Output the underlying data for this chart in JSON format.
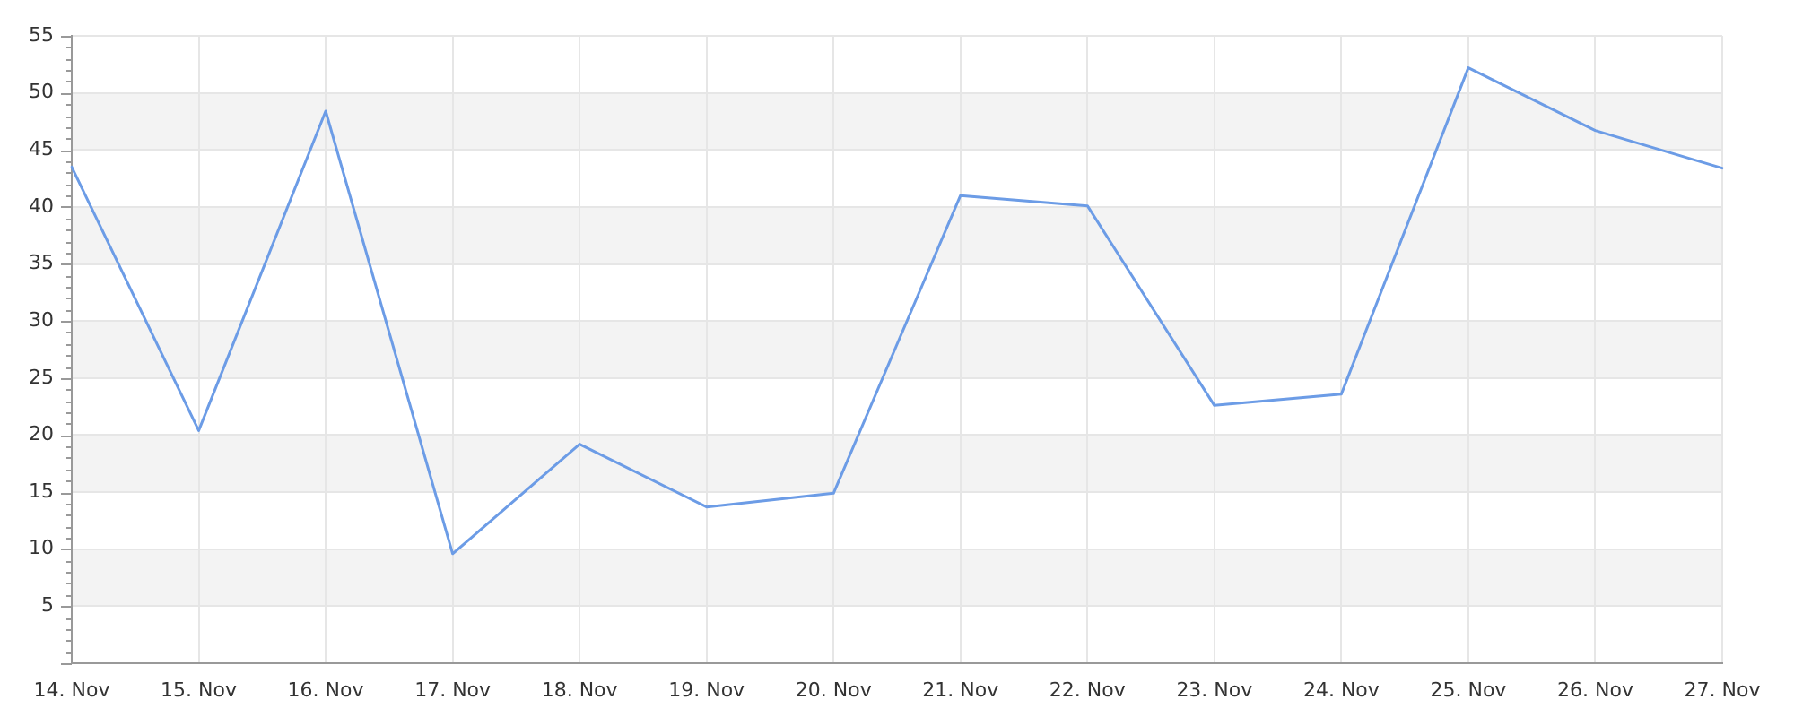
{
  "chart_data": {
    "type": "line",
    "categories": [
      "14. Nov",
      "15. Nov",
      "16. Nov",
      "17. Nov",
      "18. Nov",
      "19. Nov",
      "20. Nov",
      "21. Nov",
      "22. Nov",
      "23. Nov",
      "24. Nov",
      "25. Nov",
      "26. Nov",
      "27. Nov"
    ],
    "values": [
      43.5,
      20.4,
      48.4,
      9.6,
      19.2,
      13.7,
      14.9,
      41.0,
      40.1,
      22.6,
      23.6,
      52.2,
      46.7,
      43.4
    ],
    "color": "#6c9ce6",
    "ylim": [
      0,
      55
    ],
    "yticks": [
      {
        "value": 0,
        "label": null
      },
      {
        "value": 1,
        "label": null
      },
      {
        "value": 2,
        "label": null
      },
      {
        "value": 3,
        "label": null
      },
      {
        "value": 4,
        "label": null
      },
      5,
      {
        "value": 6,
        "label": null
      },
      {
        "value": 7,
        "label": null
      },
      {
        "value": 8,
        "label": null
      },
      {
        "value": 9,
        "label": null
      },
      10,
      {
        "value": 11,
        "label": null
      },
      {
        "value": 12,
        "label": null
      },
      {
        "value": 13,
        "label": null
      },
      {
        "value": 14,
        "label": null
      },
      15,
      {
        "value": 16,
        "label": null
      },
      {
        "value": 17,
        "label": null
      },
      {
        "value": 18,
        "label": null
      },
      {
        "value": 19,
        "label": null
      },
      20,
      {
        "value": 21,
        "label": null
      },
      {
        "value": 22,
        "label": null
      },
      {
        "value": 23,
        "label": null
      },
      {
        "value": 24,
        "label": null
      },
      25,
      {
        "value": 26,
        "label": null
      },
      {
        "value": 27,
        "label": null
      },
      {
        "value": 28,
        "label": null
      },
      {
        "value": 29,
        "label": null
      },
      30,
      {
        "value": 31,
        "label": null
      },
      {
        "value": 32,
        "label": null
      },
      {
        "value": 33,
        "label": null
      },
      {
        "value": 34,
        "label": null
      },
      35,
      {
        "value": 36,
        "label": null
      },
      {
        "value": 37,
        "label": null
      },
      {
        "value": 38,
        "label": null
      },
      {
        "value": 39,
        "label": null
      },
      40,
      {
        "value": 41,
        "label": null
      },
      {
        "value": 42,
        "label": null
      },
      {
        "value": 43,
        "label": null
      },
      {
        "value": 44,
        "label": null
      },
      45,
      {
        "value": 46,
        "label": null
      },
      {
        "value": 47,
        "label": null
      },
      {
        "value": 48,
        "label": null
      },
      {
        "value": 49,
        "label": null
      },
      50,
      {
        "value": 51,
        "label": null
      },
      {
        "value": 52,
        "label": null
      },
      {
        "value": 53,
        "label": null
      },
      {
        "value": 54,
        "label": null
      },
      55
    ],
    "grid": true,
    "bands": [
      {
        "axis": "y",
        "from": 5,
        "to": 10,
        "color": "#f3f3f3"
      },
      {
        "axis": "y",
        "from": 15,
        "to": 20,
        "color": "#f3f3f3"
      },
      {
        "axis": "y",
        "from": 25,
        "to": 30,
        "color": "#f3f3f3"
      },
      {
        "axis": "y",
        "from": 35,
        "to": 40,
        "color": "#f3f3f3"
      },
      {
        "axis": "y",
        "from": 45,
        "to": 50,
        "color": "#f3f3f3"
      }
    ]
  }
}
